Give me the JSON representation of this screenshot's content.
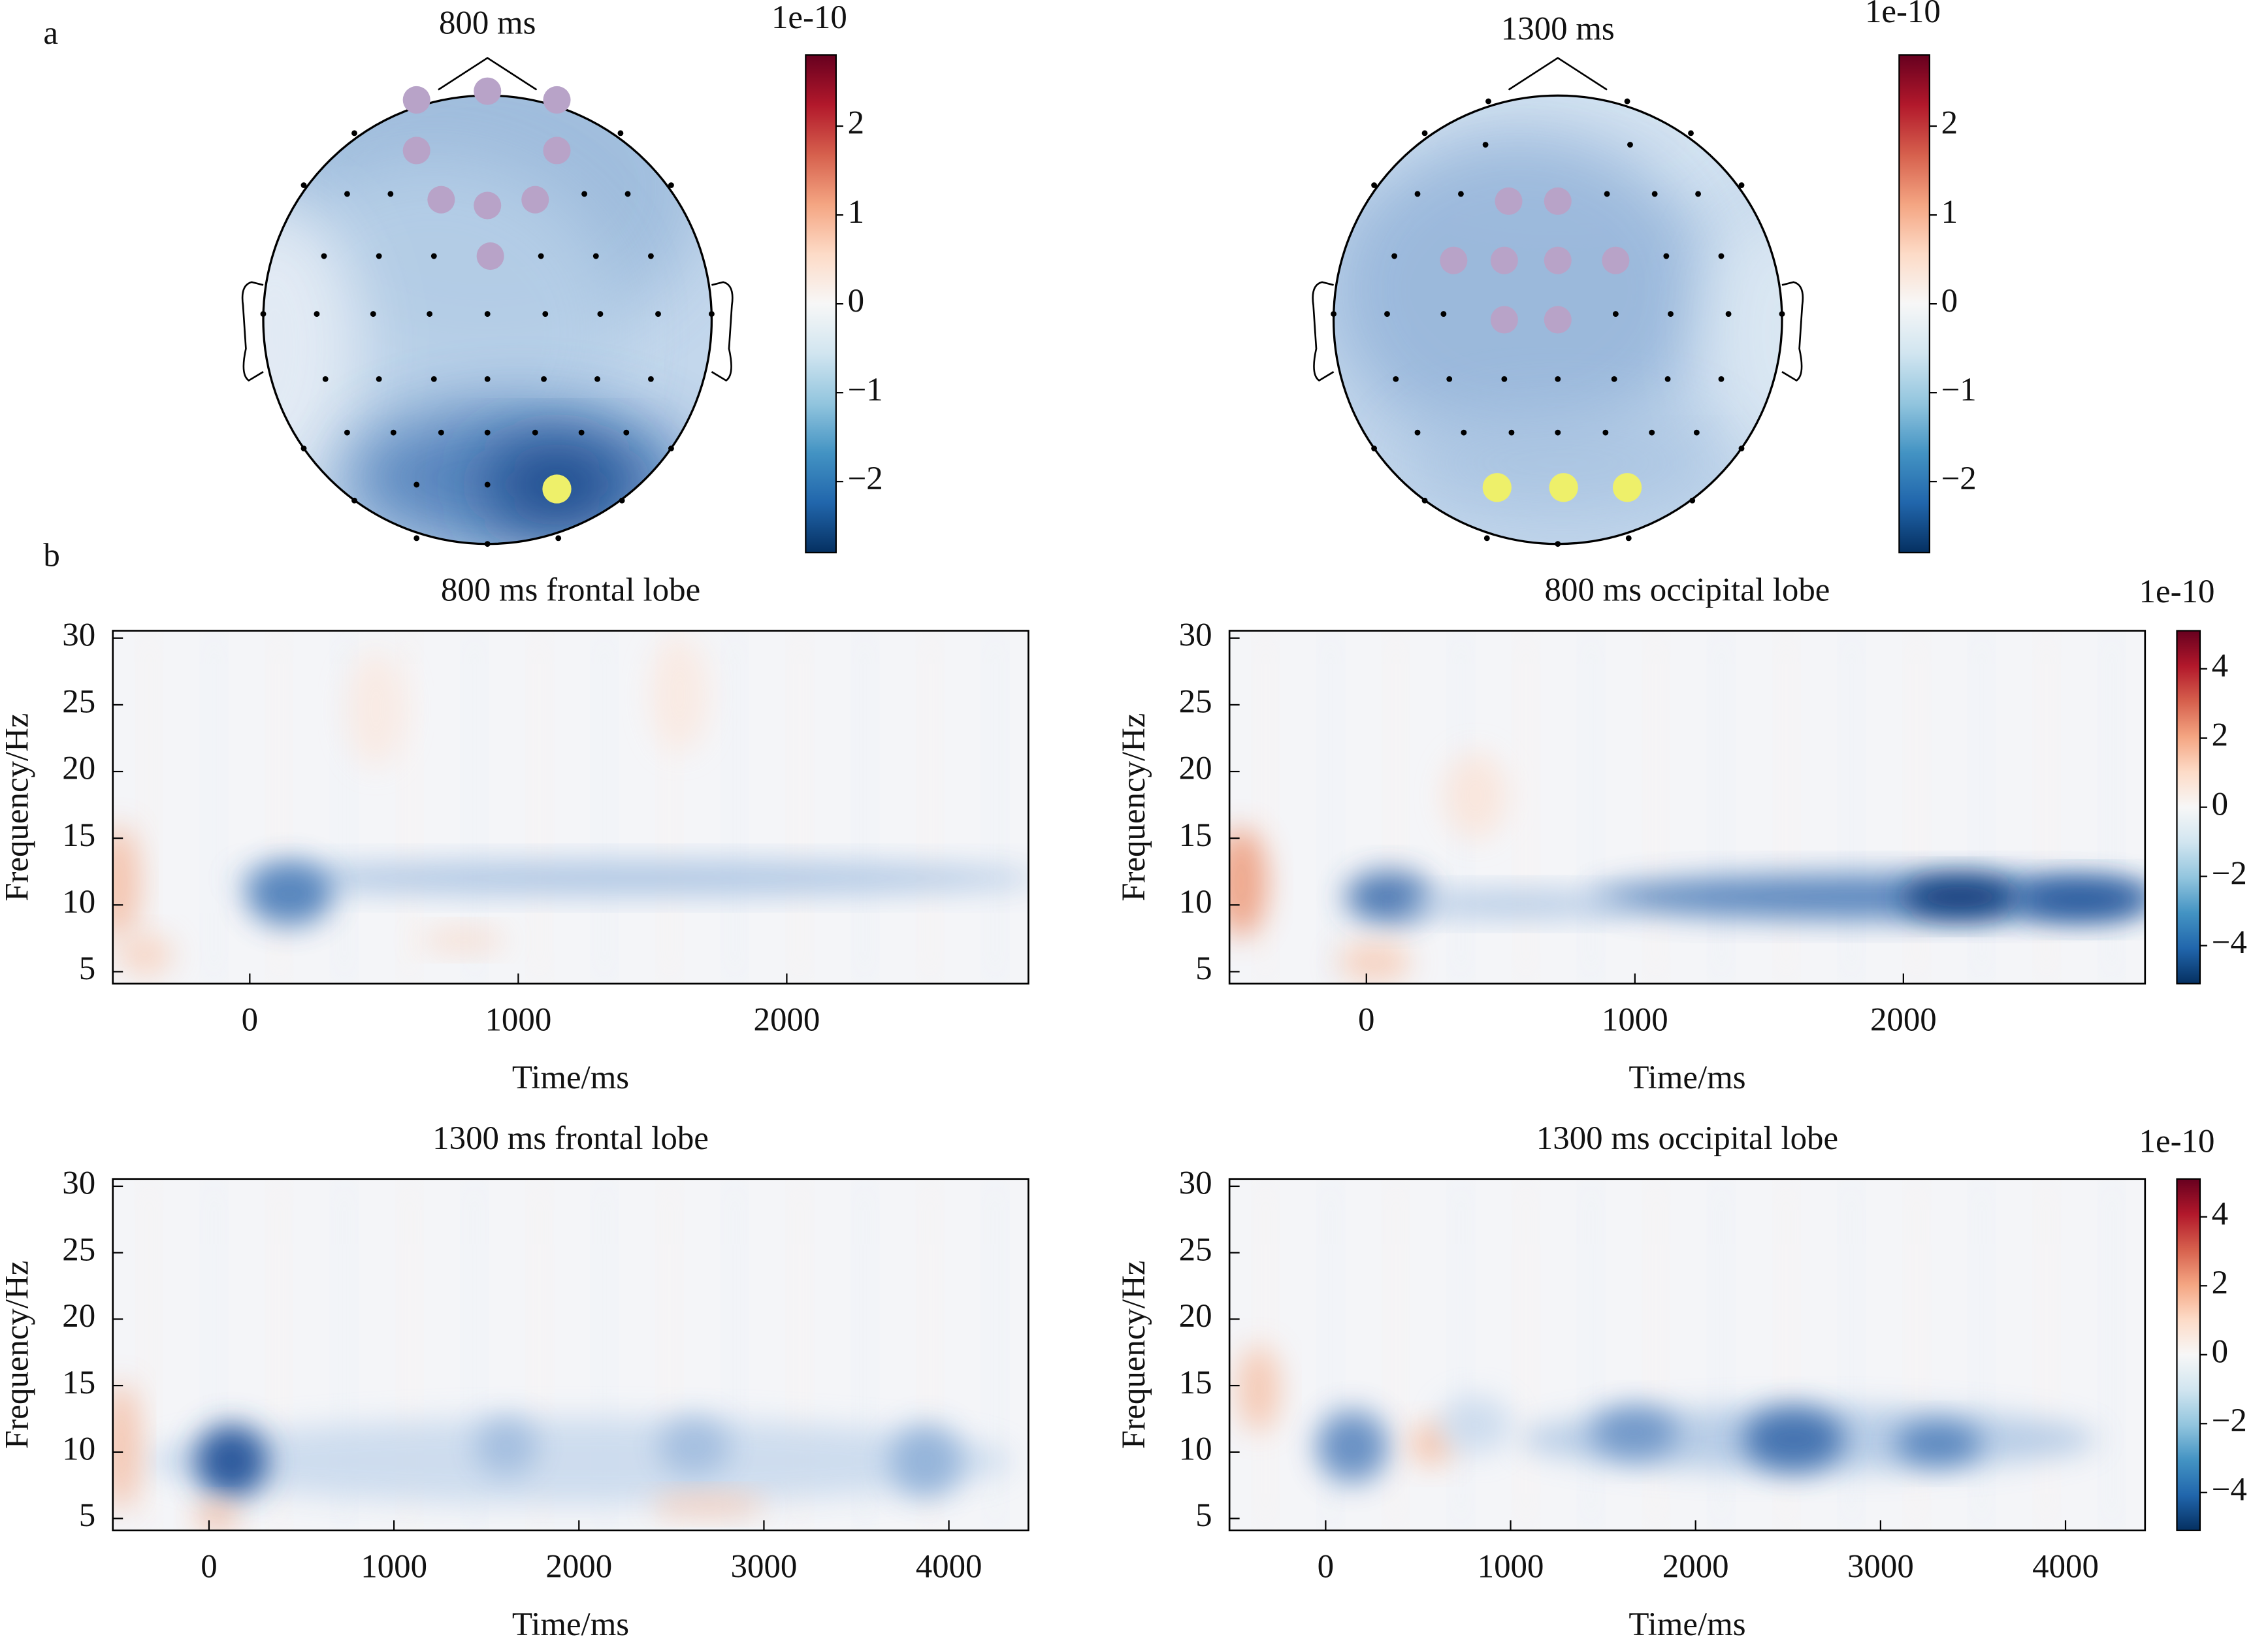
{
  "panel_labels": [
    "a",
    "b"
  ],
  "chart_data": [
    {
      "type": "topomap",
      "title": "800 ms",
      "colorbar": {
        "label": "1e-10",
        "lim": [
          -2.8,
          2.8
        ],
        "ticks": [
          {
            "value": -2,
            "label": "−2"
          },
          {
            "value": -1,
            "label": "−1"
          },
          0,
          1,
          2
        ]
      }
    },
    {
      "type": "topomap",
      "title": "1300 ms",
      "colorbar": {
        "label": "1e-10",
        "lim": [
          -2.8,
          2.8
        ],
        "ticks": [
          {
            "value": -2,
            "label": "−2"
          },
          {
            "value": -1,
            "label": "−1"
          },
          0,
          1,
          2
        ]
      }
    },
    {
      "type": "heatmap",
      "title": "800 ms frontal lobe",
      "xlabel": "Time/ms",
      "ylabel": "Frequency/Hz",
      "xlim": [
        -510,
        2900
      ],
      "xticks": [
        0,
        1000,
        2000
      ],
      "ylim": [
        4.1,
        30.55
      ],
      "yticks": [
        5,
        10,
        15,
        20,
        25,
        30
      ]
    },
    {
      "type": "heatmap",
      "title": "800 ms occipital lobe",
      "xlabel": "Time/ms",
      "ylabel": "Frequency/Hz",
      "xlim": [
        -510,
        2900
      ],
      "xticks": [
        0,
        1000,
        2000
      ],
      "ylim": [
        4.1,
        30.55
      ],
      "yticks": [
        5,
        10,
        15,
        20,
        25,
        30
      ],
      "colorbar": {
        "label": "1e-10",
        "lim": [
          -5.1,
          5.1
        ],
        "ticks": [
          {
            "value": -4,
            "label": "−4"
          },
          {
            "value": -2,
            "label": "−2"
          },
          0,
          2,
          4
        ]
      }
    },
    {
      "type": "heatmap",
      "title": "1300 ms frontal lobe",
      "xlabel": "Time/ms",
      "ylabel": "Frequency/Hz",
      "xlim": [
        -520,
        4430
      ],
      "xticks": [
        0,
        1000,
        2000,
        3000,
        4000
      ],
      "ylim": [
        4.1,
        30.55
      ],
      "yticks": [
        5,
        10,
        15,
        20,
        25,
        30
      ]
    },
    {
      "type": "heatmap",
      "title": "1300 ms occipital lobe",
      "xlabel": "Time/ms",
      "ylabel": "Frequency/Hz",
      "xlim": [
        -520,
        4430
      ],
      "xticks": [
        0,
        1000,
        2000,
        3000,
        4000
      ],
      "ylim": [
        4.1,
        30.55
      ],
      "yticks": [
        5,
        10,
        15,
        20,
        25,
        30
      ],
      "colorbar": {
        "label": "1e-10",
        "lim": [
          -5.1,
          5.1
        ],
        "ticks": [
          {
            "value": -4,
            "label": "−4"
          },
          {
            "value": -2,
            "label": "−2"
          },
          0,
          2,
          4
        ]
      }
    }
  ]
}
